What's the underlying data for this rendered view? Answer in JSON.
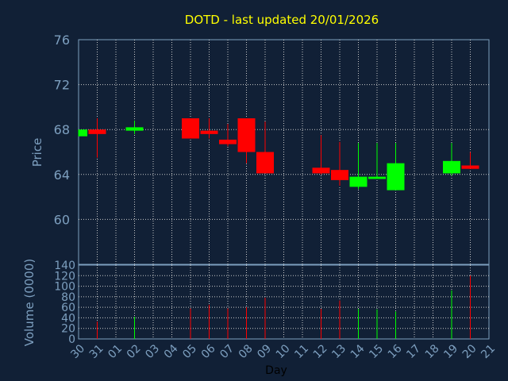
{
  "chart_data": {
    "type": "candlestick",
    "title": "DOTD - last updated 20/01/2026",
    "ylabel_price": "Price",
    "ylabel_volume": "Volume (0000)",
    "xlabel": "Day",
    "price_ylim": [
      56,
      76
    ],
    "price_ticks": [
      60,
      64,
      68,
      72,
      76
    ],
    "volume_ylim": [
      0,
      140
    ],
    "volume_ticks": [
      0,
      20,
      40,
      60,
      80,
      100,
      120,
      140
    ],
    "days": [
      "30",
      "31",
      "01",
      "02",
      "03",
      "04",
      "05",
      "06",
      "07",
      "08",
      "09",
      "10",
      "11",
      "12",
      "13",
      "14",
      "15",
      "16",
      "17",
      "18",
      "19",
      "20",
      "21"
    ],
    "candles": [
      {
        "day": "30",
        "open": 67.4,
        "close": 68.0,
        "high": 68.0,
        "low": 67.4,
        "volume": 0
      },
      {
        "day": "31",
        "open": 68.0,
        "close": 67.6,
        "high": 69.0,
        "low": 65.5,
        "volume": 33
      },
      {
        "day": "02",
        "open": 67.9,
        "close": 68.2,
        "high": 68.8,
        "low": 67.6,
        "volume": 42
      },
      {
        "day": "05",
        "open": 69.0,
        "close": 67.2,
        "high": 69.0,
        "low": 67.2,
        "volume": 58
      },
      {
        "day": "06",
        "open": 67.9,
        "close": 67.6,
        "high": 69.0,
        "low": 67.2,
        "volume": 65
      },
      {
        "day": "07",
        "open": 67.1,
        "close": 66.7,
        "high": 68.5,
        "low": 66.5,
        "volume": 58
      },
      {
        "day": "08",
        "open": 69.0,
        "close": 66.0,
        "high": 69.0,
        "low": 65.0,
        "volume": 60
      },
      {
        "day": "09",
        "open": 66.0,
        "close": 64.1,
        "high": 68.7,
        "low": 64.1,
        "volume": 78
      },
      {
        "day": "12",
        "open": 64.6,
        "close": 64.1,
        "high": 67.5,
        "low": 64.0,
        "volume": 57
      },
      {
        "day": "13",
        "open": 64.4,
        "close": 63.5,
        "high": 66.9,
        "low": 63.0,
        "volume": 73
      },
      {
        "day": "14",
        "open": 62.9,
        "close": 63.8,
        "high": 66.8,
        "low": 62.7,
        "volume": 57
      },
      {
        "day": "15",
        "open": 63.6,
        "close": 63.8,
        "high": 66.8,
        "low": 63.6,
        "volume": 56
      },
      {
        "day": "16",
        "open": 62.6,
        "close": 65.0,
        "high": 66.8,
        "low": 62.6,
        "volume": 52
      },
      {
        "day": "19",
        "open": 64.1,
        "close": 65.2,
        "high": 66.8,
        "low": 63.9,
        "volume": 92
      },
      {
        "day": "20",
        "open": 64.8,
        "close": 64.5,
        "high": 66.0,
        "low": 64.5,
        "volume": 120
      }
    ],
    "up_color": "#00ff00",
    "down_color": "#ff0000",
    "grid": true
  }
}
